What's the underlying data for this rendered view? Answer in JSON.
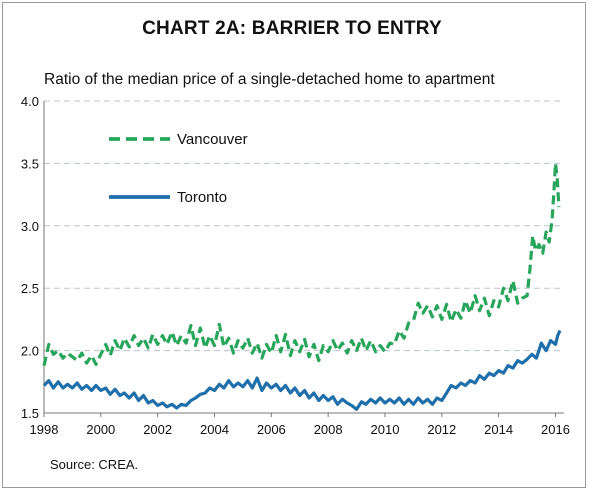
{
  "chart_data": {
    "type": "line",
    "title": "CHART 2A: BARRIER TO ENTRY",
    "subtitle": "Ratio of the median price of a single-detached home to apartment",
    "source": "Source: CREA.",
    "xlim": [
      1998,
      2016.3
    ],
    "ylim": [
      1.5,
      4.0
    ],
    "x_ticks": [
      1998,
      2000,
      2002,
      2004,
      2006,
      2008,
      2010,
      2012,
      2014,
      2016
    ],
    "y_ticks": [
      1.5,
      2.0,
      2.5,
      3.0,
      3.5,
      4.0
    ],
    "y_tick_labels": [
      "1.5",
      "2.0",
      "2.5",
      "3.0",
      "3.5",
      "4.0"
    ],
    "grid": "horizontal dashed",
    "legend": "top-left",
    "series": [
      {
        "name": "Vancouver",
        "style": "dashed",
        "color": "#27a55a",
        "points": [
          [
            1998.0,
            1.88
          ],
          [
            1998.17,
            2.05
          ],
          [
            1998.33,
            1.97
          ],
          [
            1998.5,
            2.0
          ],
          [
            1998.67,
            1.94
          ],
          [
            1998.83,
            1.98
          ],
          [
            1999.0,
            1.95
          ],
          [
            1999.17,
            1.92
          ],
          [
            1999.33,
            1.98
          ],
          [
            1999.5,
            1.9
          ],
          [
            1999.67,
            1.96
          ],
          [
            1999.83,
            1.89
          ],
          [
            2000.0,
            1.97
          ],
          [
            2000.17,
            2.05
          ],
          [
            2000.33,
            1.96
          ],
          [
            2000.5,
            2.08
          ],
          [
            2000.67,
            2.0
          ],
          [
            2000.83,
            2.1
          ],
          [
            2001.0,
            2.03
          ],
          [
            2001.17,
            2.12
          ],
          [
            2001.33,
            2.04
          ],
          [
            2001.5,
            2.1
          ],
          [
            2001.67,
            2.02
          ],
          [
            2001.83,
            2.13
          ],
          [
            2002.0,
            2.05
          ],
          [
            2002.17,
            2.12
          ],
          [
            2002.33,
            2.05
          ],
          [
            2002.5,
            2.15
          ],
          [
            2002.67,
            2.04
          ],
          [
            2002.83,
            2.12
          ],
          [
            2003.0,
            2.06
          ],
          [
            2003.17,
            2.2
          ],
          [
            2003.33,
            2.04
          ],
          [
            2003.5,
            2.18
          ],
          [
            2003.67,
            2.02
          ],
          [
            2003.83,
            2.12
          ],
          [
            2004.0,
            2.04
          ],
          [
            2004.17,
            2.21
          ],
          [
            2004.33,
            2.03
          ],
          [
            2004.5,
            2.1
          ],
          [
            2004.67,
            1.98
          ],
          [
            2004.83,
            2.08
          ],
          [
            2005.0,
            2.02
          ],
          [
            2005.17,
            2.1
          ],
          [
            2005.33,
            1.98
          ],
          [
            2005.5,
            2.06
          ],
          [
            2005.67,
            1.94
          ],
          [
            2005.83,
            2.05
          ],
          [
            2006.0,
            1.98
          ],
          [
            2006.17,
            2.12
          ],
          [
            2006.33,
            1.99
          ],
          [
            2006.5,
            2.13
          ],
          [
            2006.67,
            1.96
          ],
          [
            2006.83,
            2.08
          ],
          [
            2007.0,
            1.99
          ],
          [
            2007.17,
            2.09
          ],
          [
            2007.33,
            1.95
          ],
          [
            2007.5,
            2.05
          ],
          [
            2007.67,
            1.92
          ],
          [
            2007.83,
            2.04
          ],
          [
            2008.0,
            1.99
          ],
          [
            2008.17,
            2.08
          ],
          [
            2008.33,
            2.0
          ],
          [
            2008.5,
            2.06
          ],
          [
            2008.67,
            1.98
          ],
          [
            2008.83,
            2.08
          ],
          [
            2009.0,
            2.0
          ],
          [
            2009.17,
            2.1
          ],
          [
            2009.33,
            2.0
          ],
          [
            2009.5,
            2.08
          ],
          [
            2009.67,
            1.99
          ],
          [
            2009.83,
            2.04
          ],
          [
            2010.0,
            1.99
          ],
          [
            2010.17,
            2.06
          ],
          [
            2010.33,
            2.05
          ],
          [
            2010.5,
            2.16
          ],
          [
            2010.67,
            2.1
          ],
          [
            2010.83,
            2.22
          ],
          [
            2011.0,
            2.24
          ],
          [
            2011.17,
            2.38
          ],
          [
            2011.33,
            2.3
          ],
          [
            2011.5,
            2.36
          ],
          [
            2011.67,
            2.27
          ],
          [
            2011.83,
            2.36
          ],
          [
            2012.0,
            2.25
          ],
          [
            2012.17,
            2.37
          ],
          [
            2012.33,
            2.23
          ],
          [
            2012.5,
            2.33
          ],
          [
            2012.67,
            2.26
          ],
          [
            2012.83,
            2.4
          ],
          [
            2013.0,
            2.3
          ],
          [
            2013.17,
            2.44
          ],
          [
            2013.33,
            2.32
          ],
          [
            2013.5,
            2.42
          ],
          [
            2013.67,
            2.28
          ],
          [
            2013.83,
            2.4
          ],
          [
            2014.0,
            2.35
          ],
          [
            2014.17,
            2.5
          ],
          [
            2014.33,
            2.4
          ],
          [
            2014.5,
            2.56
          ],
          [
            2014.67,
            2.38
          ],
          [
            2014.83,
            2.42
          ],
          [
            2015.0,
            2.44
          ],
          [
            2015.1,
            2.65
          ],
          [
            2015.2,
            2.92
          ],
          [
            2015.3,
            2.8
          ],
          [
            2015.42,
            2.85
          ],
          [
            2015.55,
            2.78
          ],
          [
            2015.67,
            2.95
          ],
          [
            2015.78,
            2.87
          ],
          [
            2015.88,
            3.05
          ],
          [
            2015.95,
            3.3
          ],
          [
            2016.0,
            3.5
          ],
          [
            2016.06,
            3.38
          ],
          [
            2016.12,
            3.15
          ]
        ]
      },
      {
        "name": "Toronto",
        "style": "solid",
        "color": "#1f6fab",
        "points": [
          [
            1998.0,
            1.72
          ],
          [
            1998.17,
            1.76
          ],
          [
            1998.33,
            1.7
          ],
          [
            1998.5,
            1.75
          ],
          [
            1998.67,
            1.7
          ],
          [
            1998.83,
            1.73
          ],
          [
            1999.0,
            1.7
          ],
          [
            1999.17,
            1.74
          ],
          [
            1999.33,
            1.69
          ],
          [
            1999.5,
            1.72
          ],
          [
            1999.67,
            1.68
          ],
          [
            1999.83,
            1.72
          ],
          [
            2000.0,
            1.68
          ],
          [
            2000.17,
            1.7
          ],
          [
            2000.33,
            1.65
          ],
          [
            2000.5,
            1.69
          ],
          [
            2000.67,
            1.64
          ],
          [
            2000.83,
            1.66
          ],
          [
            2001.0,
            1.62
          ],
          [
            2001.17,
            1.66
          ],
          [
            2001.33,
            1.6
          ],
          [
            2001.5,
            1.64
          ],
          [
            2001.67,
            1.58
          ],
          [
            2001.83,
            1.6
          ],
          [
            2002.0,
            1.56
          ],
          [
            2002.17,
            1.58
          ],
          [
            2002.33,
            1.55
          ],
          [
            2002.5,
            1.57
          ],
          [
            2002.67,
            1.54
          ],
          [
            2002.83,
            1.57
          ],
          [
            2003.0,
            1.56
          ],
          [
            2003.17,
            1.6
          ],
          [
            2003.33,
            1.62
          ],
          [
            2003.5,
            1.65
          ],
          [
            2003.67,
            1.66
          ],
          [
            2003.83,
            1.7
          ],
          [
            2004.0,
            1.68
          ],
          [
            2004.17,
            1.73
          ],
          [
            2004.33,
            1.7
          ],
          [
            2004.5,
            1.76
          ],
          [
            2004.67,
            1.71
          ],
          [
            2004.83,
            1.74
          ],
          [
            2005.0,
            1.71
          ],
          [
            2005.17,
            1.76
          ],
          [
            2005.33,
            1.7
          ],
          [
            2005.5,
            1.78
          ],
          [
            2005.67,
            1.68
          ],
          [
            2005.83,
            1.74
          ],
          [
            2006.0,
            1.7
          ],
          [
            2006.17,
            1.73
          ],
          [
            2006.33,
            1.68
          ],
          [
            2006.5,
            1.72
          ],
          [
            2006.67,
            1.66
          ],
          [
            2006.83,
            1.7
          ],
          [
            2007.0,
            1.64
          ],
          [
            2007.17,
            1.68
          ],
          [
            2007.33,
            1.62
          ],
          [
            2007.5,
            1.66
          ],
          [
            2007.67,
            1.6
          ],
          [
            2007.83,
            1.64
          ],
          [
            2008.0,
            1.6
          ],
          [
            2008.17,
            1.63
          ],
          [
            2008.33,
            1.57
          ],
          [
            2008.5,
            1.61
          ],
          [
            2008.67,
            1.58
          ],
          [
            2008.83,
            1.56
          ],
          [
            2009.0,
            1.53
          ],
          [
            2009.17,
            1.59
          ],
          [
            2009.33,
            1.57
          ],
          [
            2009.5,
            1.61
          ],
          [
            2009.67,
            1.58
          ],
          [
            2009.83,
            1.62
          ],
          [
            2010.0,
            1.58
          ],
          [
            2010.17,
            1.61
          ],
          [
            2010.33,
            1.58
          ],
          [
            2010.5,
            1.62
          ],
          [
            2010.67,
            1.57
          ],
          [
            2010.83,
            1.61
          ],
          [
            2011.0,
            1.57
          ],
          [
            2011.17,
            1.62
          ],
          [
            2011.33,
            1.58
          ],
          [
            2011.5,
            1.61
          ],
          [
            2011.67,
            1.57
          ],
          [
            2011.83,
            1.62
          ],
          [
            2012.0,
            1.6
          ],
          [
            2012.17,
            1.66
          ],
          [
            2012.33,
            1.72
          ],
          [
            2012.5,
            1.7
          ],
          [
            2012.67,
            1.74
          ],
          [
            2012.83,
            1.72
          ],
          [
            2013.0,
            1.76
          ],
          [
            2013.17,
            1.74
          ],
          [
            2013.33,
            1.8
          ],
          [
            2013.5,
            1.77
          ],
          [
            2013.67,
            1.82
          ],
          [
            2013.83,
            1.8
          ],
          [
            2014.0,
            1.84
          ],
          [
            2014.17,
            1.82
          ],
          [
            2014.33,
            1.88
          ],
          [
            2014.5,
            1.86
          ],
          [
            2014.67,
            1.92
          ],
          [
            2014.83,
            1.9
          ],
          [
            2015.0,
            1.93
          ],
          [
            2015.17,
            1.97
          ],
          [
            2015.33,
            1.94
          ],
          [
            2015.5,
            2.06
          ],
          [
            2015.67,
            2.0
          ],
          [
            2015.83,
            2.08
          ],
          [
            2016.0,
            2.05
          ],
          [
            2016.08,
            2.12
          ],
          [
            2016.16,
            2.16
          ]
        ]
      }
    ]
  }
}
